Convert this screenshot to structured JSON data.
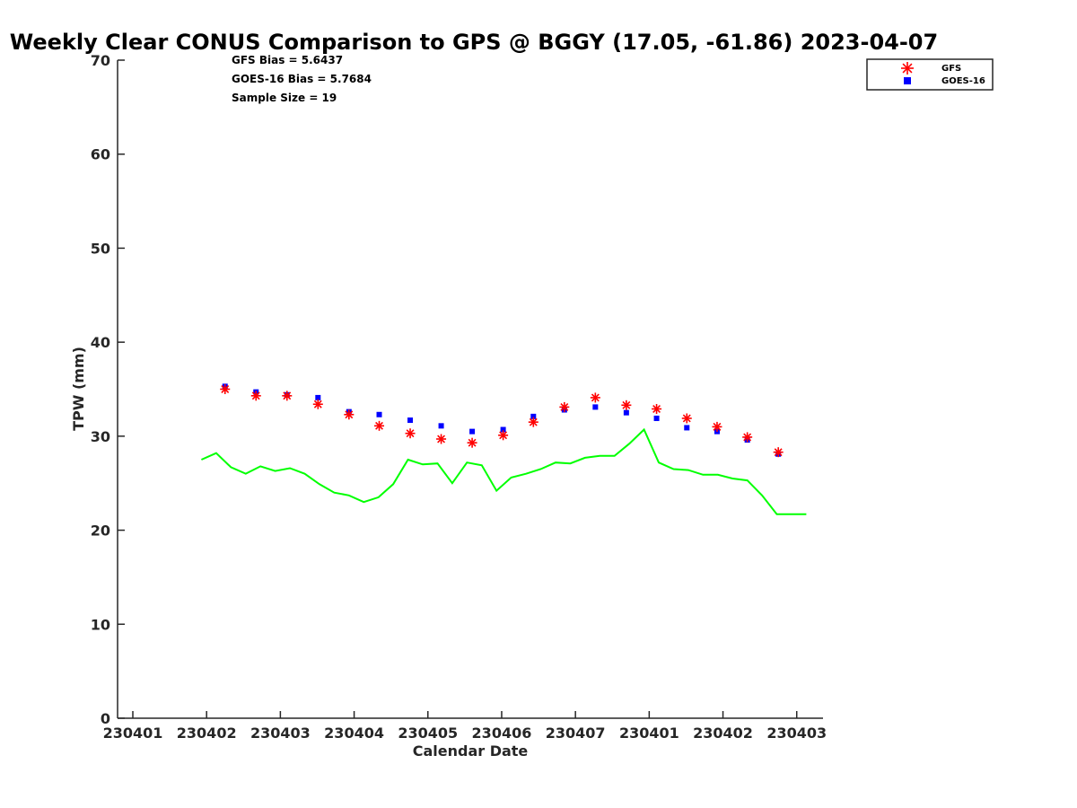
{
  "chart_data": {
    "type": "scatter",
    "title": "Weekly Clear CONUS Comparison to GPS @ BGGY (17.05, -61.86) 2023-04-07",
    "xlabel": "Calendar Date",
    "ylabel": "TPW (mm)",
    "xlim": [
      0,
      9.3
    ],
    "ylim": [
      0,
      70
    ],
    "y_ticks": [
      0,
      10,
      20,
      30,
      40,
      50,
      60,
      70
    ],
    "x_ticks": [
      {
        "pos": 0,
        "label": "230401"
      },
      {
        "pos": 1,
        "label": "230402"
      },
      {
        "pos": 2,
        "label": "230403"
      },
      {
        "pos": 3,
        "label": "230404"
      },
      {
        "pos": 4,
        "label": "230405"
      },
      {
        "pos": 5,
        "label": "230406"
      },
      {
        "pos": 6,
        "label": "230407"
      },
      {
        "pos": 7,
        "label": "230401"
      },
      {
        "pos": 8,
        "label": "230402"
      },
      {
        "pos": 9,
        "label": "230403"
      }
    ],
    "annotations": [
      "GFS Bias = 5.6437",
      "GOES-16 Bias = 5.7684",
      "Sample Size = 19"
    ],
    "legend": {
      "placement": "top-right",
      "entries": [
        {
          "name": "GFS",
          "color": "#ff0000",
          "marker": "asterisk"
        },
        {
          "name": "GOES-16",
          "color": "#0000ff",
          "marker": "square"
        }
      ]
    },
    "series": [
      {
        "name": "GFS",
        "color": "#ff0000",
        "marker": "asterisk",
        "x": [
          1.25,
          1.67,
          2.09,
          2.51,
          2.93,
          3.34,
          3.76,
          4.18,
          4.6,
          5.02,
          5.43,
          5.85,
          6.27,
          6.69,
          7.1,
          7.51,
          7.92,
          8.33,
          8.75
        ],
        "y": [
          35.0,
          34.3,
          34.3,
          33.4,
          32.3,
          31.1,
          30.3,
          29.7,
          29.3,
          30.1,
          31.5,
          33.1,
          34.1,
          33.3,
          32.9,
          31.9,
          31.0,
          29.9,
          28.3
        ]
      },
      {
        "name": "GOES-16",
        "color": "#0000ff",
        "marker": "square",
        "x": [
          1.25,
          1.67,
          2.09,
          2.51,
          2.93,
          3.34,
          3.76,
          4.18,
          4.6,
          5.02,
          5.43,
          5.85,
          6.27,
          6.69,
          7.1,
          7.51,
          7.92,
          8.33,
          8.75
        ],
        "y": [
          35.3,
          34.7,
          34.4,
          34.1,
          32.6,
          32.3,
          31.7,
          31.1,
          30.5,
          30.7,
          32.1,
          32.8,
          33.1,
          32.5,
          31.9,
          30.9,
          30.5,
          29.6,
          28.1
        ]
      },
      {
        "name": "GPS",
        "color": "#00ff00",
        "marker": "line",
        "x": [
          0.93,
          1.13,
          1.33,
          1.53,
          1.73,
          1.93,
          2.13,
          2.33,
          2.53,
          2.73,
          2.93,
          3.13,
          3.33,
          3.53,
          3.73,
          3.93,
          4.13,
          4.33,
          4.53,
          4.73,
          4.93,
          5.13,
          5.33,
          5.53,
          5.73,
          5.93,
          6.13,
          6.33,
          6.53,
          6.73,
          6.93,
          7.13,
          7.33,
          7.53,
          7.73,
          7.93,
          8.13,
          8.33,
          8.53,
          8.73,
          8.93,
          9.13
        ],
        "y": [
          27.5,
          28.2,
          26.7,
          26.0,
          26.8,
          26.3,
          26.6,
          26.0,
          24.9,
          24.0,
          23.7,
          23.0,
          23.5,
          24.9,
          27.5,
          27.0,
          27.1,
          25.0,
          27.2,
          26.9,
          24.2,
          25.6,
          26.0,
          26.5,
          27.2,
          27.1,
          27.7,
          27.9,
          27.9,
          29.2,
          30.7,
          27.2,
          26.5,
          26.4,
          25.9,
          25.9,
          25.5,
          25.3,
          23.7,
          21.7,
          21.7,
          21.7
        ]
      }
    ]
  }
}
